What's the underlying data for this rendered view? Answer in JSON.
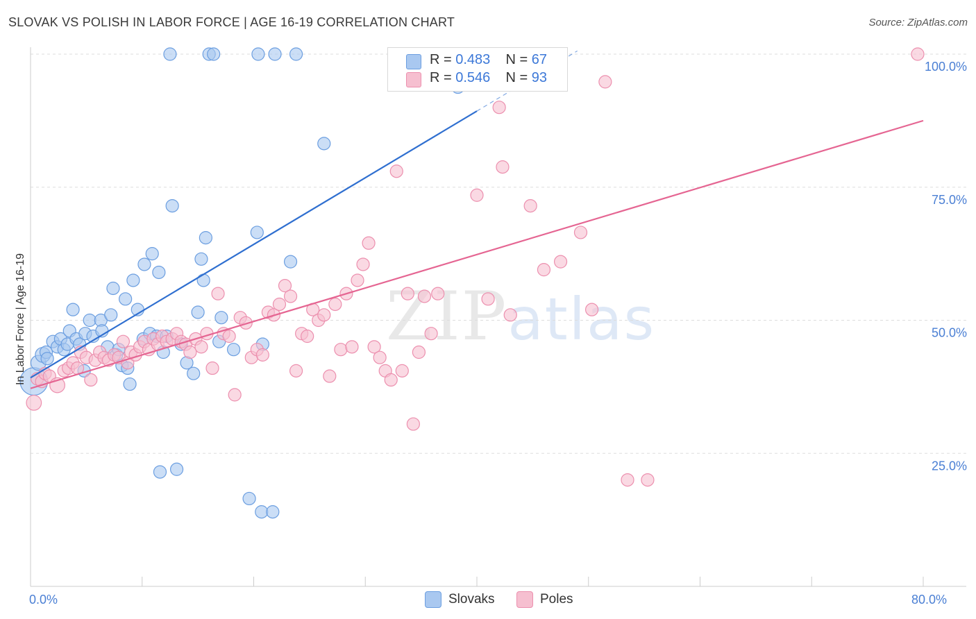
{
  "header": {
    "title": "SLOVAK VS POLISH IN LABOR FORCE | AGE 16-19 CORRELATION CHART",
    "source": "Source: ZipAtlas.com"
  },
  "watermark": {
    "zip": "ZIP",
    "atlas": "atlas"
  },
  "legend_top": {
    "rows": [
      {
        "r_label": "R = ",
        "r_value": "0.483",
        "n_label": "N = ",
        "n_value": "67"
      },
      {
        "r_label": "R = ",
        "r_value": "0.546",
        "n_label": "N = ",
        "n_value": "93"
      }
    ]
  },
  "legend_bottom": {
    "items": [
      {
        "label": "Slovaks"
      },
      {
        "label": "Poles"
      }
    ]
  },
  "colors": {
    "slovak_fill": "#a9c8f0",
    "slovak_stroke": "#6b9ee0",
    "slovak_line": "#2f6fd0",
    "pole_fill": "#f6bfd0",
    "pole_stroke": "#ec8fae",
    "pole_line": "#e56592",
    "grid": "#dddddd",
    "tick": "#4a7fd4"
  },
  "chart_data": {
    "type": "scatter",
    "title": "SLOVAK VS POLISH IN LABOR FORCE | AGE 16-19 CORRELATION CHART",
    "xlabel": "",
    "ylabel": "In Labor Force | Age 16-19",
    "xlim": [
      0,
      80
    ],
    "ylim": [
      0,
      100
    ],
    "x_tick_labels": [
      {
        "value": 0,
        "label": "0.0%"
      },
      {
        "value": 80,
        "label": "80.0%"
      }
    ],
    "y_tick_labels": [
      {
        "value": 100,
        "label": "100.0%"
      },
      {
        "value": 75,
        "label": "75.0%"
      },
      {
        "value": 50,
        "label": "50.0%"
      },
      {
        "value": 25,
        "label": "25.0%"
      }
    ],
    "grid": true,
    "series": [
      {
        "name": "Slovaks",
        "R": 0.483,
        "N": 67,
        "trend": {
          "x0": 0,
          "y0": 39.2,
          "x1": 40,
          "y1": 89.3,
          "dashed_to_x": 49,
          "dashed_to_y": 100.6
        },
        "points": [
          [
            0.3,
            38.5,
            22
          ],
          [
            0.7,
            42,
            12
          ],
          [
            1.1,
            43.5,
            12
          ],
          [
            1.4,
            44,
            10
          ],
          [
            1.5,
            42.8,
            10
          ],
          [
            2.0,
            46,
            10
          ],
          [
            2.4,
            45,
            10
          ],
          [
            2.7,
            46.5,
            10
          ],
          [
            3.0,
            44.5,
            10
          ],
          [
            3.3,
            45.5,
            10
          ],
          [
            3.5,
            48,
            10
          ],
          [
            3.8,
            52,
            10
          ],
          [
            4.1,
            46.5,
            10
          ],
          [
            4.4,
            45.5,
            10
          ],
          [
            4.9,
            47.5,
            10
          ],
          [
            4.8,
            40.5,
            10
          ],
          [
            5.3,
            50,
            10
          ],
          [
            5.6,
            47,
            10
          ],
          [
            6.3,
            50,
            10
          ],
          [
            6.4,
            48,
            10
          ],
          [
            6.9,
            45,
            10
          ],
          [
            7.2,
            51,
            10
          ],
          [
            7.4,
            56,
            10
          ],
          [
            7.7,
            43.5,
            10
          ],
          [
            7.9,
            44.5,
            10
          ],
          [
            8.2,
            41.5,
            10
          ],
          [
            8.5,
            54,
            10
          ],
          [
            8.7,
            41,
            10
          ],
          [
            8.9,
            38,
            10
          ],
          [
            9.2,
            57.5,
            10
          ],
          [
            9.6,
            52,
            10
          ],
          [
            10.1,
            46.5,
            10
          ],
          [
            10.2,
            60.5,
            10
          ],
          [
            10.7,
            47.5,
            10
          ],
          [
            10.9,
            62.5,
            10
          ],
          [
            11.3,
            47,
            10
          ],
          [
            11.5,
            59,
            10
          ],
          [
            11.9,
            44,
            10
          ],
          [
            12.2,
            47,
            10
          ],
          [
            12.7,
            71.5,
            10
          ],
          [
            13.5,
            45.5,
            10
          ],
          [
            14.0,
            42,
            10
          ],
          [
            14.6,
            40,
            10
          ],
          [
            15.0,
            51.5,
            10
          ],
          [
            15.3,
            61.5,
            10
          ],
          [
            15.5,
            57.5,
            10
          ],
          [
            15.7,
            65.5,
            10
          ],
          [
            16.9,
            46,
            10
          ],
          [
            17.1,
            50.5,
            10
          ],
          [
            18.2,
            44.5,
            10
          ],
          [
            20.3,
            66.5,
            10
          ],
          [
            20.8,
            45.5,
            10
          ],
          [
            23.3,
            61,
            10
          ],
          [
            26.3,
            83.2,
            10
          ],
          [
            38.3,
            93.8,
            10
          ],
          [
            12.5,
            100,
            10
          ],
          [
            16.0,
            100,
            10
          ],
          [
            16.4,
            100,
            10
          ],
          [
            20.4,
            100,
            10
          ],
          [
            21.9,
            100,
            10
          ],
          [
            23.8,
            100,
            10
          ],
          [
            11.6,
            21.5,
            10
          ],
          [
            13.1,
            22,
            10
          ],
          [
            19.6,
            16.5,
            10
          ],
          [
            20.7,
            14,
            10
          ],
          [
            21.7,
            14,
            10
          ],
          [
            39.5,
            98.2,
            10
          ]
        ]
      },
      {
        "name": "Poles",
        "R": 0.546,
        "N": 93,
        "trend": {
          "x0": 0,
          "y0": 37.2,
          "x1": 80,
          "y1": 87.5
        },
        "points": [
          [
            0.3,
            34.5,
            12
          ],
          [
            0.6,
            39,
            10
          ],
          [
            1.0,
            38.5,
            10
          ],
          [
            1.3,
            40,
            10
          ],
          [
            1.7,
            39.5,
            10
          ],
          [
            2.4,
            37.8,
            12
          ],
          [
            3.0,
            40.5,
            10
          ],
          [
            3.4,
            41,
            10
          ],
          [
            3.8,
            42,
            10
          ],
          [
            4.2,
            41,
            10
          ],
          [
            4.5,
            44,
            10
          ],
          [
            5.0,
            43,
            10
          ],
          [
            5.4,
            38.8,
            10
          ],
          [
            5.8,
            42.5,
            10
          ],
          [
            6.2,
            44,
            10
          ],
          [
            6.6,
            43,
            10
          ],
          [
            7.0,
            42.5,
            10
          ],
          [
            7.5,
            43.5,
            10
          ],
          [
            7.9,
            43,
            10
          ],
          [
            8.3,
            46,
            10
          ],
          [
            8.7,
            42,
            10
          ],
          [
            9.0,
            44,
            10
          ],
          [
            9.4,
            43.5,
            10
          ],
          [
            9.8,
            45,
            10
          ],
          [
            10.2,
            46,
            10
          ],
          [
            10.6,
            44.5,
            10
          ],
          [
            11.0,
            46.5,
            10
          ],
          [
            11.4,
            45.5,
            10
          ],
          [
            11.8,
            47,
            10
          ],
          [
            12.2,
            46,
            10
          ],
          [
            12.7,
            46.5,
            10
          ],
          [
            13.1,
            47.5,
            10
          ],
          [
            13.5,
            46,
            10
          ],
          [
            13.9,
            45.5,
            10
          ],
          [
            14.3,
            44,
            10
          ],
          [
            14.8,
            46.5,
            10
          ],
          [
            15.3,
            45,
            10
          ],
          [
            15.8,
            47.5,
            10
          ],
          [
            16.3,
            41,
            10
          ],
          [
            16.8,
            55,
            10
          ],
          [
            17.3,
            47.5,
            10
          ],
          [
            17.8,
            47,
            10
          ],
          [
            18.3,
            36,
            10
          ],
          [
            18.8,
            50.5,
            10
          ],
          [
            19.3,
            49.5,
            10
          ],
          [
            19.8,
            43,
            10
          ],
          [
            20.3,
            44.5,
            10
          ],
          [
            20.8,
            43.5,
            10
          ],
          [
            21.3,
            51.5,
            10
          ],
          [
            21.8,
            51,
            10
          ],
          [
            22.3,
            53,
            10
          ],
          [
            22.8,
            56.5,
            10
          ],
          [
            23.3,
            54.5,
            10
          ],
          [
            23.8,
            40.5,
            10
          ],
          [
            24.3,
            47.5,
            10
          ],
          [
            24.8,
            47,
            10
          ],
          [
            25.3,
            52,
            10
          ],
          [
            25.8,
            50,
            10
          ],
          [
            26.3,
            51,
            10
          ],
          [
            26.8,
            39.5,
            10
          ],
          [
            27.3,
            53,
            10
          ],
          [
            27.8,
            44.5,
            10
          ],
          [
            28.3,
            55,
            10
          ],
          [
            28.8,
            45,
            10
          ],
          [
            29.3,
            57.5,
            10
          ],
          [
            29.8,
            60.5,
            10
          ],
          [
            30.3,
            64.5,
            10
          ],
          [
            30.8,
            45,
            10
          ],
          [
            31.3,
            43,
            10
          ],
          [
            31.8,
            40.5,
            10
          ],
          [
            32.3,
            38.8,
            10
          ],
          [
            32.8,
            78,
            10
          ],
          [
            33.3,
            40.5,
            10
          ],
          [
            33.8,
            55,
            10
          ],
          [
            34.3,
            30.5,
            10
          ],
          [
            34.8,
            44,
            10
          ],
          [
            35.3,
            54.5,
            10
          ],
          [
            35.9,
            47.5,
            10
          ],
          [
            36.5,
            55,
            10
          ],
          [
            40.0,
            73.5,
            10
          ],
          [
            41.0,
            54,
            10
          ],
          [
            42.0,
            90,
            10
          ],
          [
            42.3,
            78.8,
            10
          ],
          [
            43.0,
            51,
            10
          ],
          [
            44.8,
            71.5,
            10
          ],
          [
            46.0,
            59.5,
            10
          ],
          [
            47.5,
            61,
            10
          ],
          [
            49.3,
            66.5,
            10
          ],
          [
            50.3,
            52,
            10
          ],
          [
            51.5,
            94.8,
            10
          ],
          [
            53.5,
            20,
            10
          ],
          [
            55.3,
            20,
            10
          ],
          [
            79.5,
            100,
            10
          ]
        ]
      }
    ]
  }
}
